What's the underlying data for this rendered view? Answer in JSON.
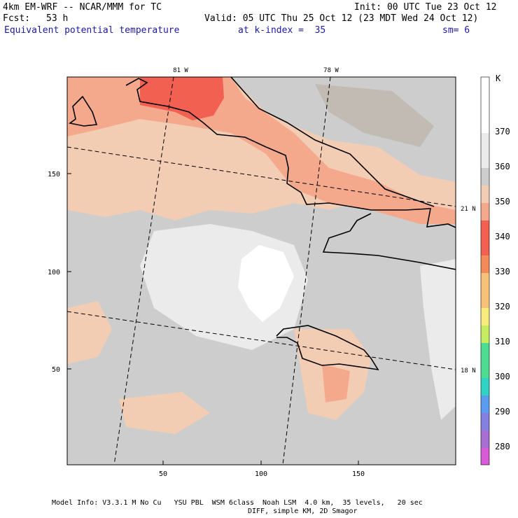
{
  "header": {
    "model_title": "4km EM-WRF -- NCAR/MMM for TC",
    "fcst_label": "Fcst:",
    "fcst_value": "53 h",
    "init": "Init: 00 UTC Tue 23 Oct 12",
    "valid": "Valid: 05 UTC Thu 25 Oct 12 (23 MDT Wed 24 Oct 12)",
    "field": "Equivalent potential temperature",
    "level": "at k-index =  35",
    "smoothing": "sm= 6"
  },
  "map": {
    "x_ticks": [
      "50",
      "100",
      "150"
    ],
    "y_ticks": [
      "50",
      "100",
      "150"
    ],
    "lon_labels": [
      "81 W",
      "78 W"
    ],
    "lat_labels": [
      "21 N",
      "18 N"
    ]
  },
  "colorbar": {
    "unit": "K",
    "labels": [
      "370",
      "360",
      "350",
      "340",
      "330",
      "320",
      "310",
      "300",
      "290",
      "280"
    ],
    "colors": [
      "#ffffff",
      "#ebebeb",
      "#cdcdcd",
      "#bcb3a9",
      "#f3cdb3",
      "#f4a98d",
      "#f26052",
      "#f48a5a",
      "#f6c27a",
      "#f7ec7d",
      "#c6ec62",
      "#4edc92",
      "#31d4c4",
      "#5b9cf0",
      "#8380e0",
      "#a86ed2",
      "#d85ad6"
    ]
  },
  "footer": {
    "line1": "Model Info: V3.3.1 M No Cu   YSU PBL  WSM 6class  Noah LSM  4.0 km,  35 levels,   20 sec",
    "line2": "DIFF, simple KM, 2D Smagor"
  }
}
